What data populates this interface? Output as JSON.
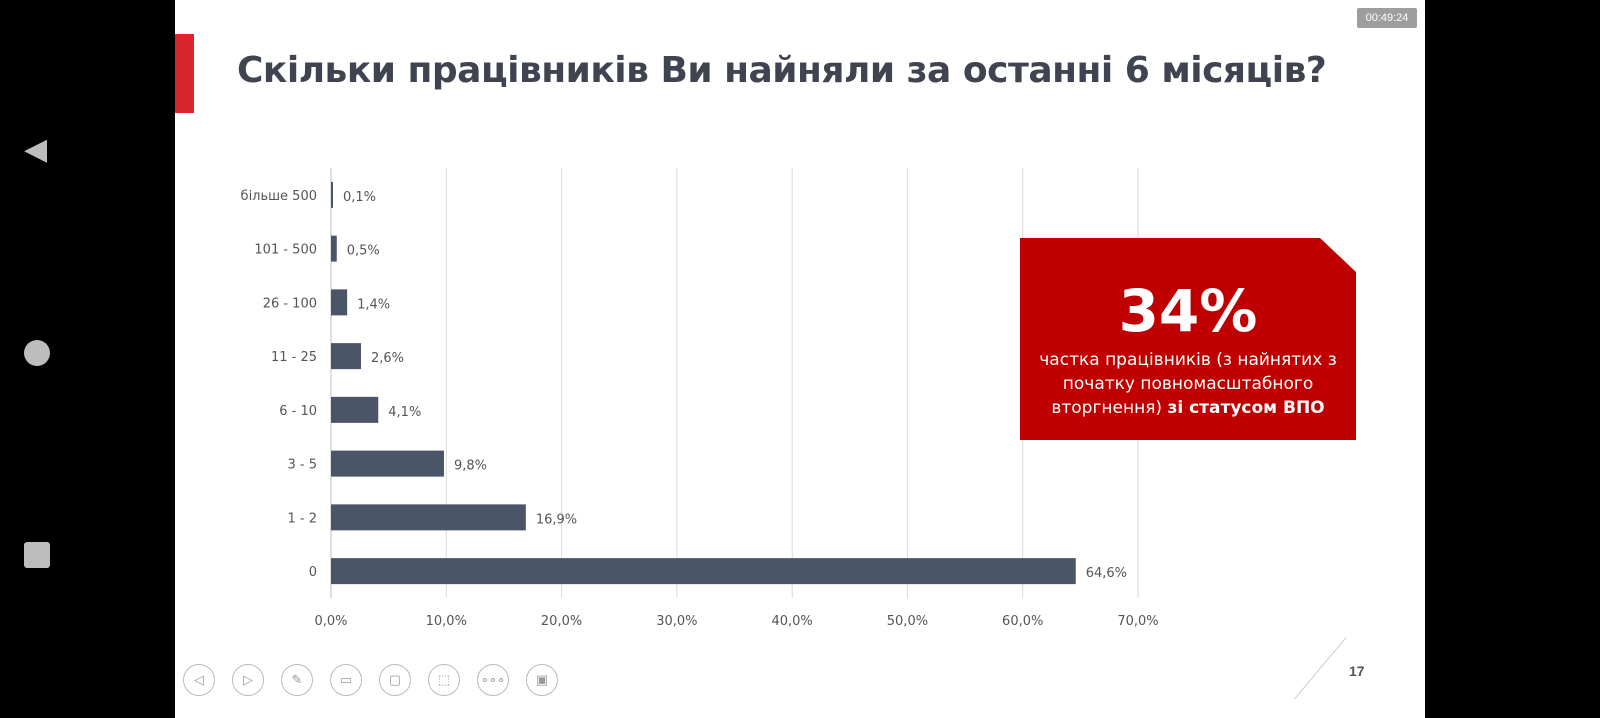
{
  "timer": "00:49:24",
  "title": "Скільки працівників Ви найняли за останні 6 місяців?",
  "callout": {
    "value": "34%",
    "text": "частка працівників (з найнятих з початку повномасштабного вторгнення)",
    "text_bold": "зі статусом ВПО"
  },
  "page_number": "17",
  "toolbar": [
    {
      "name": "previous-icon",
      "glyph": "◁"
    },
    {
      "name": "next-icon",
      "glyph": "▷"
    },
    {
      "name": "pen-icon",
      "glyph": "✎"
    },
    {
      "name": "subtitles-icon",
      "glyph": "▭"
    },
    {
      "name": "camera-icon",
      "glyph": "▢"
    },
    {
      "name": "pointer-icon",
      "glyph": "⬚"
    },
    {
      "name": "more-icon",
      "glyph": "∘∘∘"
    },
    {
      "name": "presenter-view-icon",
      "glyph": "▣"
    }
  ],
  "colors": {
    "bar": "#4a5568",
    "accent": "#c00000"
  },
  "chart_data": {
    "type": "bar",
    "orientation": "horizontal",
    "categories": [
      "більше 500",
      "101 - 500",
      "26 - 100",
      "11 - 25",
      "6 - 10",
      "3 - 5",
      "1 - 2",
      "0"
    ],
    "values": [
      0.1,
      0.5,
      1.4,
      2.6,
      4.1,
      9.8,
      16.9,
      64.6
    ],
    "value_labels": [
      "0,1%",
      "0,5%",
      "1,4%",
      "2,6%",
      "4,1%",
      "9,8%",
      "16,9%",
      "64,6%"
    ],
    "xlim": [
      0,
      70
    ],
    "x_ticks": [
      "0,0%",
      "10,0%",
      "20,0%",
      "30,0%",
      "40,0%",
      "50,0%",
      "60,0%",
      "70,0%"
    ],
    "grid": true
  }
}
